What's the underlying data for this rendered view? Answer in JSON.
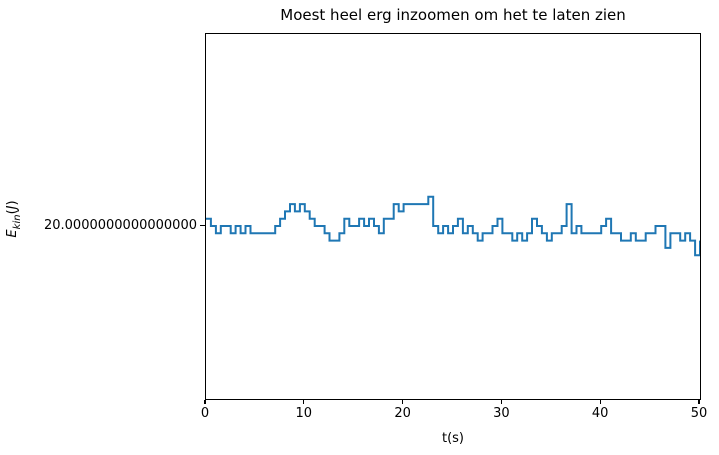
{
  "title": "Moest heel erg inzoomen om het te laten zien",
  "axes": {
    "xlabel": "t(s)",
    "ylabel": {
      "base": "E",
      "sub": "kin",
      "open": "(",
      "arg": "J",
      "close": ")"
    },
    "x_tick_labels": [
      "0",
      "10",
      "20",
      "30",
      "40",
      "50"
    ],
    "y_tick_label": "20.0000000000000000"
  },
  "colors": {
    "line": "#1f77b4",
    "text": "#000000",
    "spine": "#000000",
    "background": "#ffffff"
  },
  "chart_data": {
    "type": "line",
    "line_style": "steps",
    "title": "Moest heel erg inzoomen om het te laten zien",
    "xlabel": "t(s)",
    "ylabel": "E_kin(J)",
    "xlim": [
      0,
      50
    ],
    "grid": false,
    "legend": false,
    "x_start": 0,
    "x_step": 0.5,
    "x_ticks": [
      0,
      10,
      20,
      30,
      40,
      50
    ],
    "y_tick": {
      "value": 20.0,
      "label": "20.0000000000000000"
    },
    "y_baseline": 20.0,
    "y_quantum": 3.552713678800501e-15,
    "y_values_rule": "y = y_baseline + level * y_quantum (float64 rounding noise around constant 20 J)",
    "series": [
      {
        "name": "E_kin",
        "levels": [
          1,
          0,
          -1,
          0,
          0,
          -1,
          0,
          -1,
          0,
          -1,
          -1,
          -1,
          -1,
          -1,
          0,
          1,
          2,
          3,
          2,
          3,
          2,
          1,
          0,
          0,
          -1,
          -2,
          -2,
          -1,
          1,
          0,
          0,
          1,
          0,
          1,
          0,
          -1,
          1,
          1,
          3,
          2,
          3,
          3,
          3,
          3,
          3,
          4,
          0,
          -1,
          0,
          -1,
          0,
          1,
          -1,
          0,
          -1,
          -2,
          -1,
          -1,
          0,
          1,
          -1,
          -1,
          -2,
          -1,
          -2,
          -1,
          1,
          0,
          -1,
          -2,
          -1,
          -1,
          0,
          3,
          -1,
          0,
          -1,
          -1,
          -1,
          -1,
          0,
          1,
          -1,
          -1,
          -2,
          -2,
          -1,
          -2,
          -2,
          -1,
          -1,
          0,
          0,
          -3,
          -1,
          -1,
          -2,
          -1,
          -2,
          -4,
          -2
        ]
      }
    ]
  }
}
